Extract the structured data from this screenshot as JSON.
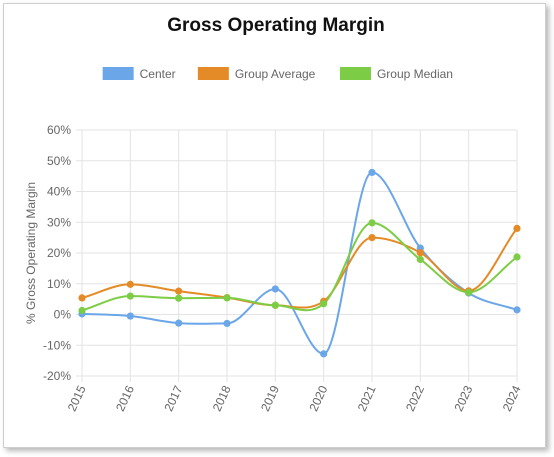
{
  "chart_data": {
    "type": "line",
    "title": "Gross Operating Margin",
    "xlabel": "",
    "ylabel": "% Gross Operating Margin",
    "categories": [
      "2015",
      "2016",
      "2017",
      "2018",
      "2019",
      "2020",
      "2021",
      "2022",
      "2023",
      "2024"
    ],
    "ylim": [
      -20,
      60
    ],
    "yticks": [
      -20,
      -10,
      0,
      10,
      20,
      30,
      40,
      50,
      60
    ],
    "ytick_labels": [
      "-20%",
      "-10%",
      "0%",
      "10%",
      "20%",
      "30%",
      "40%",
      "50%",
      "60%"
    ],
    "grid": true,
    "legend_position": "top",
    "series": [
      {
        "name": "Center",
        "color": "#6aa6e8",
        "values": [
          0.2,
          -0.5,
          -2.8,
          -2.9,
          8.3,
          -12.8,
          46.2,
          21.6,
          7.0,
          1.5
        ]
      },
      {
        "name": "Group Average",
        "color": "#e48b27",
        "values": [
          5.4,
          9.8,
          7.6,
          5.5,
          3.0,
          4.3,
          25.0,
          20.1,
          7.7,
          28.0
        ]
      },
      {
        "name": "Group Median",
        "color": "#7ccd45",
        "values": [
          1.3,
          6.0,
          5.3,
          5.4,
          3.0,
          3.5,
          29.8,
          17.9,
          7.2,
          18.7
        ]
      }
    ]
  }
}
